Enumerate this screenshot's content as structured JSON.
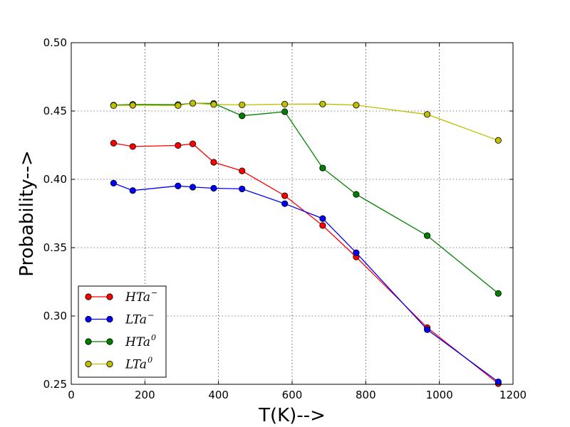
{
  "chart_data": {
    "type": "line",
    "title": "",
    "xlabel": "T(K)-->",
    "ylabel": "Probability-->",
    "xlim": [
      0,
      1200
    ],
    "ylim": [
      0.25,
      0.5
    ],
    "xticks": [
      0,
      200,
      400,
      600,
      800,
      1000,
      1200
    ],
    "yticks": [
      0.25,
      0.3,
      0.35,
      0.4,
      0.45,
      0.5
    ],
    "xtick_labels": [
      "0",
      "200",
      "400",
      "600",
      "800",
      "1000",
      "1200"
    ],
    "ytick_labels": [
      "0.25",
      "0.30",
      "0.35",
      "0.40",
      "0.45",
      "0.50"
    ],
    "grid": true,
    "legend_position": "lower-left",
    "series": [
      {
        "name": "HTa",
        "superscript": "−",
        "color": "#ff0000",
        "x": [
          115,
          167,
          290,
          330,
          387,
          464,
          580,
          683,
          774,
          967,
          1160
        ],
        "y": [
          0.4265,
          0.424,
          0.4248,
          0.426,
          0.4125,
          0.4062,
          0.388,
          0.3662,
          0.3432,
          0.2915,
          0.2505
        ]
      },
      {
        "name": "LTa",
        "superscript": "−",
        "color": "#0000ff",
        "x": [
          115,
          167,
          290,
          330,
          387,
          464,
          580,
          683,
          774,
          967,
          1160
        ],
        "y": [
          0.3972,
          0.3918,
          0.3952,
          0.3943,
          0.3935,
          0.393,
          0.3822,
          0.3713,
          0.3463,
          0.29,
          0.2518
        ]
      },
      {
        "name": "HTa",
        "superscript": "0",
        "color": "#008000",
        "x": [
          115,
          167,
          290,
          330,
          387,
          464,
          580,
          683,
          774,
          967,
          1160
        ],
        "y": [
          0.4543,
          0.4548,
          0.4547,
          0.4557,
          0.4555,
          0.4465,
          0.4495,
          0.4083,
          0.389,
          0.3588,
          0.3165
        ]
      },
      {
        "name": "LTa",
        "superscript": "0",
        "color": "#bfbf00",
        "x": [
          115,
          167,
          290,
          330,
          387,
          464,
          580,
          683,
          774,
          967,
          1160
        ],
        "y": [
          0.454,
          0.4542,
          0.454,
          0.4557,
          0.4548,
          0.4545,
          0.455,
          0.4551,
          0.4543,
          0.4475,
          0.4285
        ]
      }
    ]
  }
}
